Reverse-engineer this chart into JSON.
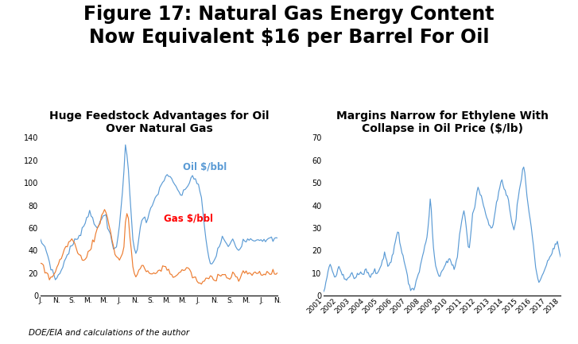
{
  "title_line1": "Figure 17: Natural Gas Energy Content",
  "title_line2": "Now Equivalent $16 per Barrel For Oil",
  "title_fontsize": 17,
  "title_fontweight": "bold",
  "footnote": "DOE/EIA and calculations of the author",
  "left_subtitle": "Huge Feedstock Advantages for Oil\nOver Natural Gas",
  "right_subtitle": "Margins Narrow for Ethylene With\nCollapse in Oil Price ($/lb)",
  "subtitle_fontsize": 10,
  "subtitle_fontweight": "bold",
  "oil_color": "#5B9BD5",
  "gas_color": "#ED7D31",
  "ethylene_color": "#5B9BD5",
  "left_ylim": [
    0,
    140
  ],
  "left_yticks": [
    0,
    20,
    40,
    60,
    80,
    100,
    120,
    140
  ],
  "right_ylim": [
    0,
    70
  ],
  "right_yticks": [
    0,
    10,
    20,
    30,
    40,
    50,
    60,
    70
  ],
  "oil_label": "Oil $/bbl",
  "gas_label": "Gas $/bbl",
  "oil_label_color": "#5B9BD5",
  "gas_label_color": "#FF0000",
  "left_xtick_labels": [
    "J.",
    "N.",
    "S.",
    "M.",
    "M.",
    "J.",
    "N.",
    "S.",
    "M.",
    "M.",
    "J.",
    "N.",
    "S.",
    "M.",
    "J.",
    "N."
  ],
  "right_year_ticks": [
    2001,
    2002,
    2003,
    2004,
    2005,
    2006,
    2007,
    2008,
    2009,
    2010,
    2011,
    2012,
    2013,
    2014,
    2015,
    2016,
    2017,
    2018
  ],
  "background_color": "#ffffff"
}
